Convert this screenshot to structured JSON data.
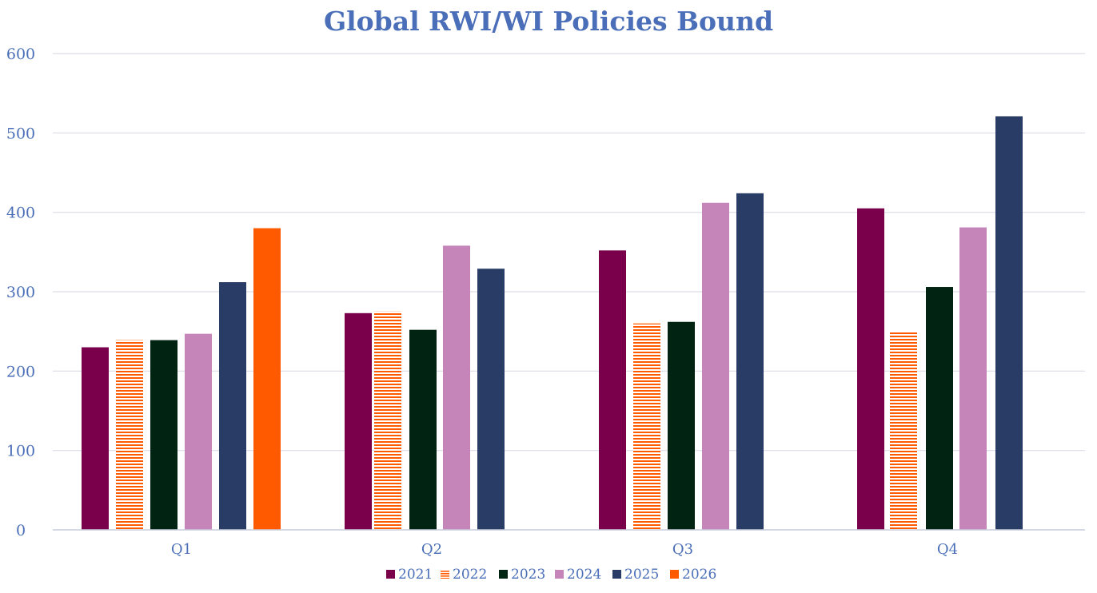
{
  "chart_data": {
    "type": "bar",
    "title": "Global RWI/WI Policies Bound",
    "xlabel": "",
    "ylabel": "",
    "categories": [
      "Q1",
      "Q2",
      "Q3",
      "Q4"
    ],
    "ylim": [
      0,
      600
    ],
    "yticks": [
      0,
      100,
      200,
      300,
      400,
      500,
      600
    ],
    "grid": true,
    "legend_position": "bottom",
    "series": [
      {
        "name": "2021",
        "color": "#7a004b",
        "pattern": "solid",
        "values": [
          230,
          273,
          352,
          405
        ]
      },
      {
        "name": "2022",
        "color": "#ff5a00",
        "pattern": "horizontal-stripes",
        "values": [
          239,
          275,
          260,
          250
        ]
      },
      {
        "name": "2023",
        "color": "#002312",
        "pattern": "solid",
        "values": [
          239,
          252,
          262,
          306
        ]
      },
      {
        "name": "2024",
        "color": "#c685b8",
        "pattern": "solid",
        "values": [
          247,
          358,
          412,
          381
        ]
      },
      {
        "name": "2025",
        "color": "#283c66",
        "pattern": "solid",
        "values": [
          312,
          329,
          424,
          521
        ]
      },
      {
        "name": "2026",
        "color": "#ff5a00",
        "pattern": "solid",
        "values": [
          380,
          null,
          null,
          null
        ]
      }
    ]
  }
}
